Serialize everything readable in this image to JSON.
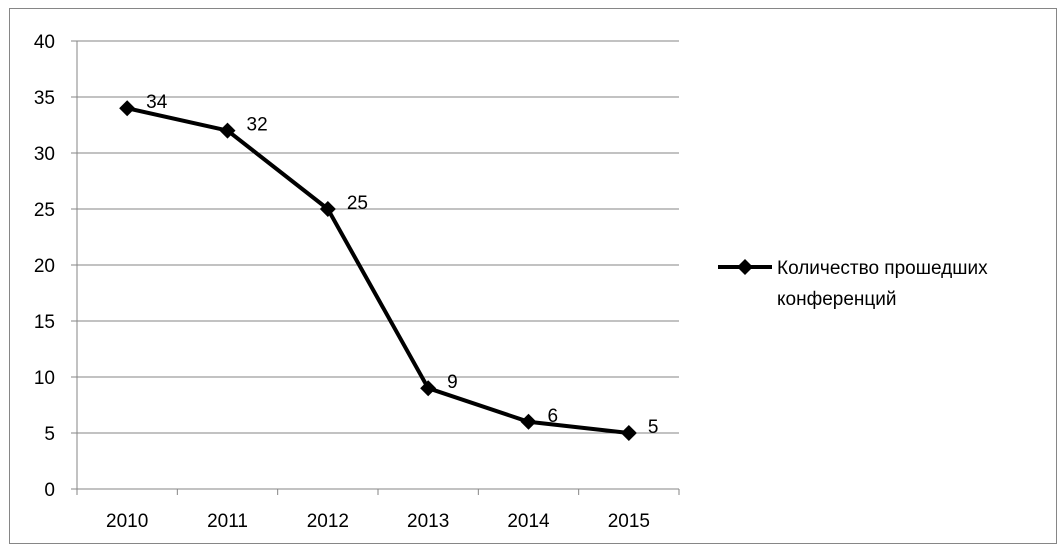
{
  "chart_data": {
    "type": "line",
    "categories": [
      "2010",
      "2011",
      "2012",
      "2013",
      "2014",
      "2015"
    ],
    "series": [
      {
        "name": "Количество прошедших конференций",
        "values": [
          34,
          32,
          25,
          9,
          6,
          5
        ],
        "color": "#000000",
        "marker": "diamond"
      }
    ],
    "ylim": [
      0,
      40
    ],
    "yticks": [
      "0",
      "5",
      "10",
      "15",
      "20",
      "25",
      "30",
      "35",
      "40"
    ],
    "grid": true,
    "legend": "right",
    "data_labels": true
  },
  "legend": {
    "line1": "Количество прошедших",
    "line2": "конференций"
  }
}
